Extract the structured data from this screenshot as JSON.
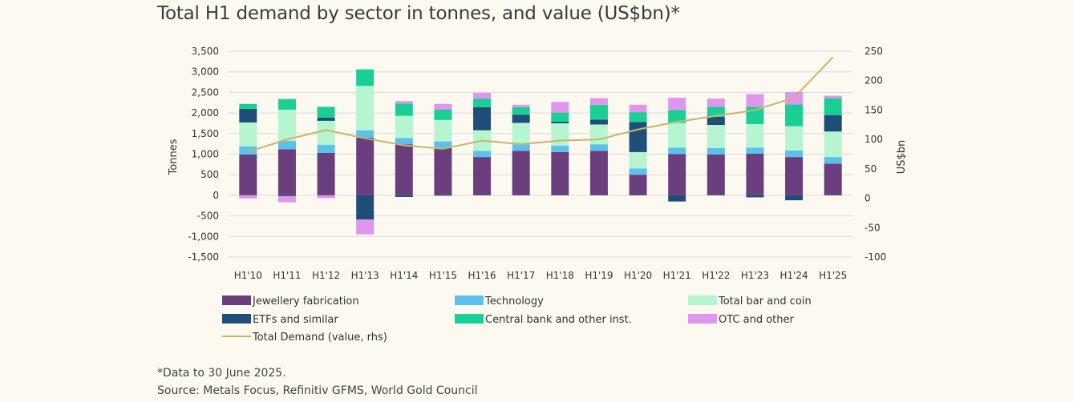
{
  "title": "Total H1 demand by sector in tonnes, and value (US$bn)*",
  "note": "*Data to 30 June 2025.",
  "source": "Source: Metals Focus, Refinitiv GFMS, World Gold Council",
  "chart_data": {
    "type": "bar",
    "stacked": true,
    "categories": [
      "H1'10",
      "H1'11",
      "H1'12",
      "H1'13",
      "H1'14",
      "H1'15",
      "H1'16",
      "H1'17",
      "H1'18",
      "H1'19",
      "H1'20",
      "H1'21",
      "H1'22",
      "H1'23",
      "H1'24",
      "H1'25"
    ],
    "ylabel": "Tonnes",
    "ylim": [
      -1500,
      3500
    ],
    "yticks": [
      3500,
      3000,
      2500,
      2000,
      1500,
      1000,
      500,
      0,
      -500,
      -1000,
      -1500
    ],
    "ytick_labels": [
      "3,500",
      "3,000",
      "2,500",
      "2,000",
      "1,500",
      "1,000",
      "500",
      "0",
      "-500",
      "-1,000",
      "-1,500"
    ],
    "y2label": "US$bn",
    "y2lim": [
      -100,
      250
    ],
    "y2ticks": [
      250,
      200,
      150,
      100,
      50,
      0,
      -50,
      -100
    ],
    "y2tick_labels": [
      "250",
      "200",
      "150",
      "100",
      "50",
      "0",
      "-50",
      "-100"
    ],
    "grid": true,
    "legend_position": "bottom",
    "series": [
      {
        "name": "Jewellery fabrication",
        "color": "#6b3f7e",
        "values": [
          990,
          1120,
          1030,
          1400,
          1240,
          1150,
          930,
          1080,
          1050,
          1080,
          500,
          1000,
          990,
          1010,
          930,
          770
        ]
      },
      {
        "name": "Technology",
        "color": "#5bc0eb",
        "values": [
          200,
          200,
          200,
          180,
          150,
          160,
          150,
          160,
          160,
          160,
          150,
          160,
          160,
          150,
          160,
          160
        ]
      },
      {
        "name": "Total bar and coin",
        "color": "#b5f5cf",
        "values": [
          580,
          760,
          580,
          1080,
          540,
          520,
          500,
          520,
          540,
          480,
          400,
          600,
          560,
          570,
          590,
          620
        ]
      },
      {
        "name": "ETFs and similar",
        "color": "#1f4e79",
        "values": [
          330,
          -20,
          80,
          -590,
          -40,
          -10,
          560,
          200,
          40,
          120,
          730,
          -150,
          200,
          -50,
          -120,
          400
        ]
      },
      {
        "name": "Central bank and other inst.",
        "color": "#19cf95",
        "values": [
          120,
          260,
          260,
          400,
          300,
          250,
          210,
          180,
          220,
          360,
          240,
          310,
          240,
          420,
          530,
          410
        ]
      },
      {
        "name": "OTC and other",
        "color": "#df97ee",
        "values": [
          -80,
          -150,
          -70,
          -360,
          60,
          140,
          140,
          60,
          260,
          160,
          180,
          300,
          200,
          310,
          300,
          60
        ]
      }
    ],
    "line_series": {
      "name": "Total Demand (value, rhs)",
      "color": "#cbb36a",
      "axis": "right",
      "values": [
        79,
        100,
        116,
        102,
        90,
        84,
        98,
        92,
        98,
        100,
        117,
        130,
        140,
        150,
        171,
        240
      ]
    }
  }
}
